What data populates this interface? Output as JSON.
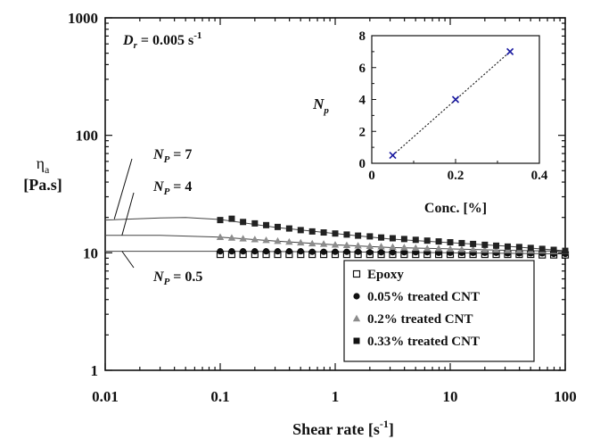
{
  "chart_data": [
    {
      "type": "scatter",
      "xscale": "log",
      "yscale": "log",
      "xlim": [
        0.01,
        100
      ],
      "ylim": [
        1,
        1000
      ],
      "x_ticks": [
        "0.01",
        "0.1",
        "1",
        "10",
        "100"
      ],
      "y_ticks": [
        "1",
        "10",
        "100",
        "1000"
      ],
      "xlabel": {
        "text": "Shear rate [s",
        "sup": "-1",
        "tail": "]"
      },
      "ylabel": {
        "line1": "η",
        "line1_sub": "a",
        "line2": "[Pa.s]"
      },
      "annotation": {
        "prefix": "D",
        "sub": "r",
        "mid": " = 0.005 s",
        "sup": "-1"
      },
      "np_labels": [
        {
          "prefix": "N",
          "sub": "P",
          "value": " = 7"
        },
        {
          "prefix": "N",
          "sub": "P",
          "value": " = 4"
        },
        {
          "prefix": "N",
          "sub": "P",
          "value": " = 0.5"
        }
      ],
      "legend": {
        "position": "lower-right",
        "entries": [
          {
            "label": "Epoxy",
            "marker": "open-square"
          },
          {
            "label": "0.05% treated CNT",
            "marker": "circle"
          },
          {
            "label": "0.2% treated CNT",
            "marker": "triangle"
          },
          {
            "label": "0.33% treated CNT",
            "marker": "square"
          }
        ]
      },
      "series": [
        {
          "name": "Epoxy",
          "marker": "open-square",
          "color": "#111111",
          "x": [
            0.1,
            0.126,
            0.158,
            0.2,
            0.251,
            0.316,
            0.398,
            0.501,
            0.631,
            0.794,
            1,
            1.26,
            1.58,
            2,
            2.51,
            3.16,
            3.98,
            5.01,
            6.31,
            7.94,
            10,
            12.6,
            15.8,
            20,
            25.1,
            31.6,
            39.8,
            50.1,
            63.1,
            79.4,
            100
          ],
          "y": [
            9.7,
            9.7,
            9.7,
            9.7,
            9.7,
            9.7,
            9.7,
            9.7,
            9.7,
            9.7,
            9.7,
            9.7,
            9.7,
            9.7,
            9.7,
            9.7,
            9.7,
            9.7,
            9.7,
            9.7,
            9.7,
            9.7,
            9.7,
            9.7,
            9.7,
            9.7,
            9.7,
            9.7,
            9.6,
            9.6,
            9.6
          ]
        },
        {
          "name": "0.05% treated CNT",
          "marker": "circle",
          "color": "#111111",
          "x": [
            0.1,
            0.126,
            0.158,
            0.2,
            0.251,
            0.316,
            0.398,
            0.501,
            0.631,
            0.794,
            1,
            1.26,
            1.58,
            2,
            2.51,
            3.16,
            3.98,
            5.01,
            6.31,
            7.94,
            10,
            12.6,
            15.8,
            20,
            25.1,
            31.6,
            39.8,
            50.1,
            63.1,
            79.4,
            100
          ],
          "y": [
            10.3,
            10.3,
            10.3,
            10.3,
            10.3,
            10.3,
            10.3,
            10.3,
            10.2,
            10.2,
            10.2,
            10.2,
            10.2,
            10.1,
            10.1,
            10.1,
            10.1,
            10.1,
            10.1,
            10.0,
            10.0,
            10.0,
            10.0,
            10.0,
            10.0,
            9.9,
            9.9,
            9.9,
            9.9,
            9.8,
            9.8
          ]
        },
        {
          "name": "0.2% treated CNT",
          "marker": "triangle",
          "color": "#8c8c8c",
          "x": [
            0.1,
            0.126,
            0.158,
            0.2,
            0.251,
            0.316,
            0.398,
            0.501,
            0.631,
            0.794,
            1,
            1.26,
            1.58,
            2,
            2.51,
            3.16,
            3.98,
            5.01,
            6.31,
            7.94,
            10,
            12.6,
            15.8,
            20,
            25.1,
            31.6,
            39.8,
            50.1,
            63.1,
            79.4,
            100
          ],
          "y": [
            13.6,
            13.4,
            13.2,
            13.0,
            12.8,
            12.6,
            12.4,
            12.2,
            12.0,
            11.9,
            11.7,
            11.6,
            11.5,
            11.4,
            11.3,
            11.2,
            11.1,
            11.0,
            10.9,
            10.9,
            10.8,
            10.7,
            10.7,
            10.6,
            10.6,
            10.5,
            10.5,
            10.4,
            10.4,
            10.3,
            10.3
          ]
        },
        {
          "name": "0.33% treated CNT",
          "marker": "square",
          "color": "#222222",
          "x": [
            0.1,
            0.126,
            0.158,
            0.2,
            0.251,
            0.316,
            0.398,
            0.501,
            0.631,
            0.794,
            1,
            1.26,
            1.58,
            2,
            2.51,
            3.16,
            3.98,
            5.01,
            6.31,
            7.94,
            10,
            12.6,
            15.8,
            20,
            25.1,
            31.6,
            39.8,
            50.1,
            63.1,
            79.4,
            100
          ],
          "y": [
            19.0,
            19.5,
            18.3,
            17.8,
            17.2,
            16.6,
            16.1,
            15.6,
            15.2,
            14.9,
            14.6,
            14.3,
            14.0,
            13.8,
            13.5,
            13.3,
            13.1,
            12.9,
            12.7,
            12.5,
            12.3,
            12.1,
            11.9,
            11.7,
            11.5,
            11.3,
            11.2,
            11.0,
            10.8,
            10.6,
            10.4
          ]
        }
      ],
      "model_curves": [
        {
          "name_label": "N_P = 7",
          "x": [
            0.01,
            0.03,
            0.05,
            0.1,
            0.3,
            1,
            3,
            10,
            30,
            100
          ],
          "y": [
            19.0,
            19.8,
            20.0,
            19.2,
            16.5,
            14.6,
            13.1,
            12.2,
            11.4,
            10.4
          ]
        },
        {
          "name_label": "N_P = 4",
          "x": [
            0.01,
            0.03,
            0.1,
            0.3,
            1,
            3,
            10,
            30,
            100
          ],
          "y": [
            14.1,
            14.1,
            13.6,
            12.6,
            11.7,
            11.1,
            10.8,
            10.5,
            10.3
          ]
        },
        {
          "name_label": "N_P = 0.5",
          "x": [
            0.01,
            0.1,
            1,
            10,
            100
          ],
          "y": [
            10.3,
            10.3,
            10.2,
            10.0,
            9.8
          ]
        }
      ]
    },
    {
      "type": "scatter",
      "inset": true,
      "xlim": [
        0,
        0.4
      ],
      "ylim": [
        0,
        8
      ],
      "x_ticks": [
        "0",
        "0.2",
        "0.4"
      ],
      "y_ticks": [
        "0",
        "2",
        "4",
        "6",
        "8"
      ],
      "xlabel": "Conc. [%]",
      "ylabel": {
        "prefix": "N",
        "sub": "p"
      },
      "points": {
        "x": [
          0.05,
          0.2,
          0.33
        ],
        "y": [
          0.5,
          4,
          7
        ]
      },
      "marker": "x",
      "marker_color": "#1a1aa0",
      "trend_line": "dotted"
    }
  ]
}
